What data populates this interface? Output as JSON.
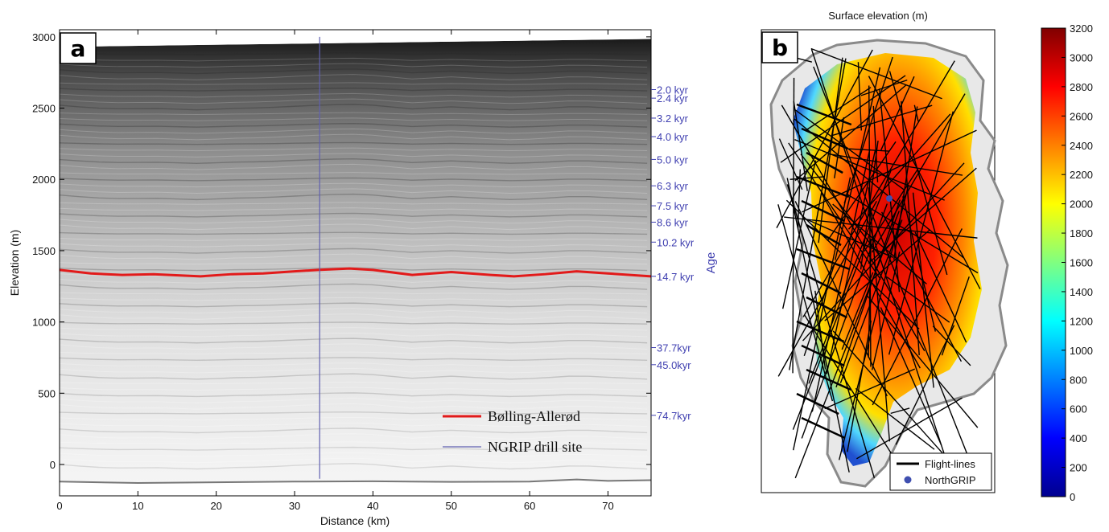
{
  "chart_data": [
    {
      "panel": "a",
      "type": "line",
      "xlabel": "Distance (km)",
      "ylabel": "Elevation (m)",
      "right_label": "Age",
      "xlim": [
        0,
        75.5
      ],
      "ylim": [
        -220,
        3050
      ],
      "xticks": [
        0,
        10,
        20,
        30,
        40,
        50,
        60,
        70
      ],
      "yticks": [
        0,
        500,
        1000,
        1500,
        2000,
        2500,
        3000
      ],
      "series": [
        {
          "name": "Bølling-Allerød",
          "color": "#e21a1a",
          "x": [
            0,
            4,
            8,
            12,
            16,
            18,
            22,
            26,
            30,
            33,
            37,
            40,
            45,
            50,
            55,
            58,
            62,
            66,
            70,
            75.5
          ],
          "y": [
            1365,
            1340,
            1330,
            1335,
            1325,
            1320,
            1335,
            1340,
            1355,
            1365,
            1375,
            1365,
            1330,
            1350,
            1330,
            1320,
            1335,
            1355,
            1340,
            1320
          ]
        },
        {
          "name": "NGRIP drill site",
          "color": "#6060b0",
          "x": [
            33.2,
            33.2
          ],
          "y": [
            -100,
            3000
          ]
        }
      ],
      "bedrock": {
        "x": [
          0,
          10,
          20,
          30,
          40,
          50,
          60,
          66,
          70,
          75.5
        ],
        "y": [
          -120,
          -130,
          -125,
          -120,
          -118,
          -122,
          -120,
          -105,
          -115,
          -110
        ]
      },
      "surface": {
        "x": [
          0,
          75.5
        ],
        "y": [
          2930,
          2985
        ]
      },
      "age_labels": [
        {
          "label": "2.0 kyr",
          "elevation": 2630
        },
        {
          "label": "2.4 kyr",
          "elevation": 2570
        },
        {
          "label": "3.2 kyr",
          "elevation": 2430
        },
        {
          "label": "4.0 kyr",
          "elevation": 2300
        },
        {
          "label": "5.0 kyr",
          "elevation": 2140
        },
        {
          "label": "6.3 kyr",
          "elevation": 1955
        },
        {
          "label": "7.5 kyr",
          "elevation": 1815
        },
        {
          "label": "8.6 kyr",
          "elevation": 1700
        },
        {
          "label": "10.2 kyr",
          "elevation": 1560
        },
        {
          "label": "14.7 kyr",
          "elevation": 1320
        },
        {
          "label": "37.7kyr",
          "elevation": 820
        },
        {
          "label": "45.0kyr",
          "elevation": 700
        },
        {
          "label": "74.7kyr",
          "elevation": 345
        }
      ]
    },
    {
      "panel": "b",
      "type": "heatmap",
      "title": "Surface elevation (m)",
      "colorbar": {
        "min": 0,
        "max": 3200,
        "ticks": [
          0,
          200,
          400,
          600,
          800,
          1000,
          1200,
          1400,
          1600,
          1800,
          2000,
          2200,
          2400,
          2600,
          2800,
          3000,
          3200
        ],
        "colormap": [
          "#00008f",
          "#0000ff",
          "#0080ff",
          "#00ffff",
          "#80ff80",
          "#ffff00",
          "#ff8000",
          "#ff0000",
          "#800000"
        ]
      },
      "legend": [
        {
          "label": "Flight-lines",
          "color": "#000000",
          "marker": "line"
        },
        {
          "label": "NorthGRIP",
          "color": "#3f4fb0",
          "marker": "dot"
        }
      ]
    }
  ],
  "panel_labels": {
    "a": "a",
    "b": "b"
  }
}
